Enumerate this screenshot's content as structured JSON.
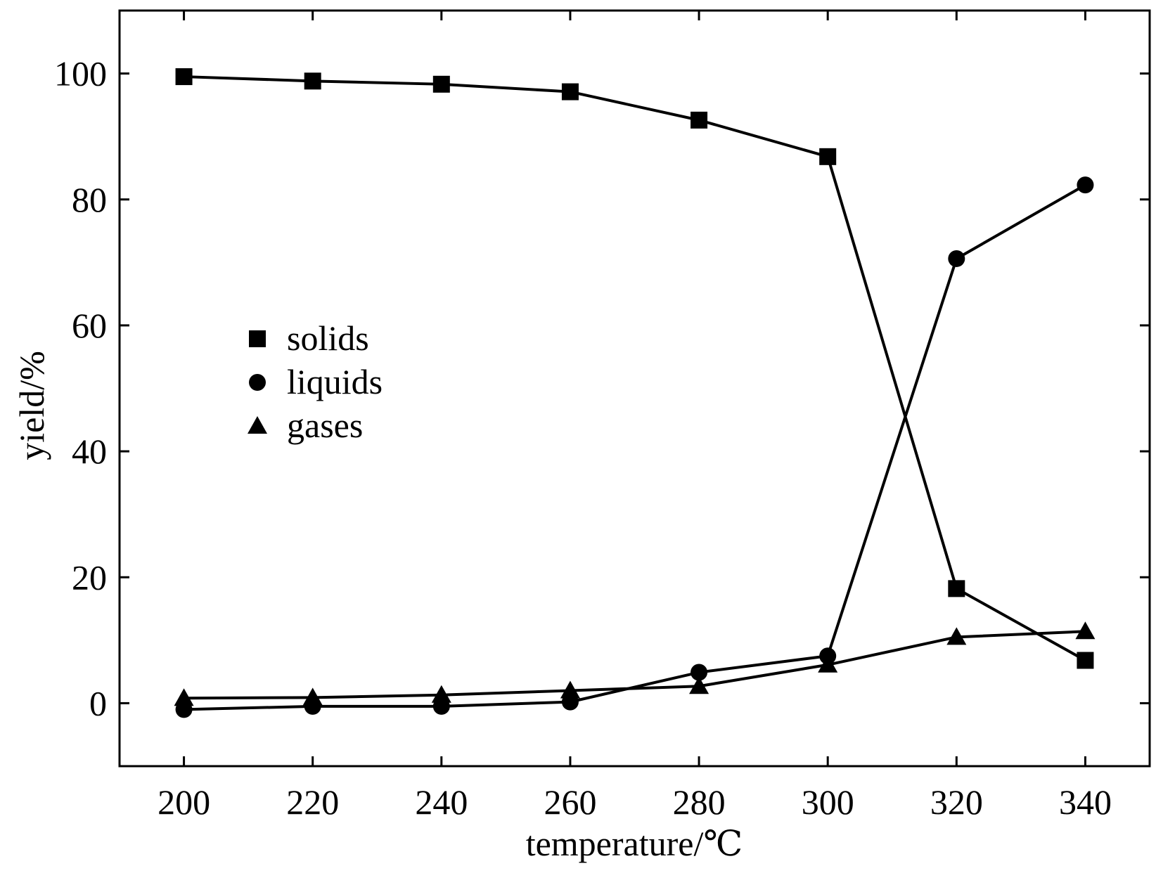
{
  "chart_data": {
    "type": "line",
    "xlabel": "temperature/℃",
    "ylabel": "yield/%",
    "xlim": [
      190,
      350
    ],
    "ylim": [
      -10,
      110
    ],
    "x_ticks": [
      200,
      220,
      240,
      260,
      280,
      300,
      320,
      340
    ],
    "y_ticks": [
      0,
      20,
      40,
      60,
      80,
      100
    ],
    "grid": false,
    "legend_position": "center-left",
    "series": [
      {
        "name": "solids",
        "marker": "square",
        "x": [
          200,
          220,
          240,
          260,
          280,
          300,
          320,
          340
        ],
        "y": [
          99.5,
          98.8,
          98.3,
          97.1,
          92.6,
          86.8,
          18.2,
          6.8
        ]
      },
      {
        "name": "liquids",
        "marker": "circle",
        "x": [
          200,
          220,
          240,
          260,
          280,
          300,
          320,
          340
        ],
        "y": [
          -1.0,
          -0.5,
          -0.5,
          0.2,
          4.9,
          7.5,
          70.6,
          82.3
        ]
      },
      {
        "name": "gases",
        "marker": "triangle",
        "x": [
          200,
          220,
          240,
          260,
          280,
          300,
          320,
          340
        ],
        "y": [
          0.8,
          0.9,
          1.3,
          2.0,
          2.7,
          6.1,
          10.5,
          11.4
        ]
      }
    ]
  }
}
